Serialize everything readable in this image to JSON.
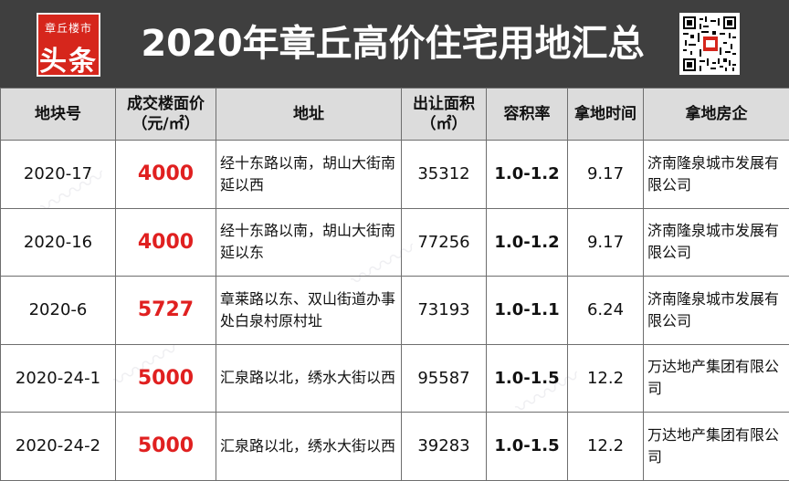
{
  "header": {
    "logo_top": "章丘楼市",
    "logo_main": "头条",
    "title": "2020年章丘高价住宅用地汇总"
  },
  "table": {
    "columns": {
      "plot": "地块号",
      "price_line1": "成交楼面价",
      "price_line2": "（元/㎡）",
      "address": "地址",
      "area_line1": "出让面积",
      "area_line2": "（㎡）",
      "far": "容积率",
      "date": "拿地时间",
      "developer": "拿地房企"
    },
    "rows": [
      {
        "plot": "2020-17",
        "price": "4000",
        "address": "经十东路以南，胡山大街南延以西",
        "area": "35312",
        "far": "1.0-1.2",
        "date": "9.17",
        "developer": "济南隆泉城市发展有限公司"
      },
      {
        "plot": "2020-16",
        "price": "4000",
        "address": "经十东路以南，胡山大街南延以东",
        "area": "77256",
        "far": "1.0-1.2",
        "date": "9.17",
        "developer": "济南隆泉城市发展有限公司"
      },
      {
        "plot": "2020-6",
        "price": "5727",
        "address": "章莱路以东、双山街道办事处白泉村原村址",
        "area": "73193",
        "far": "1.0-1.1",
        "date": "6.24",
        "developer": "济南隆泉城市发展有限公司"
      },
      {
        "plot": "2020-24-1",
        "price": "5000",
        "address": "汇泉路以北，绣水大街以西",
        "area": "95587",
        "far": "1.0-1.5",
        "date": "12.2",
        "developer": "万达地产集团有限公司"
      },
      {
        "plot": "2020-24-2",
        "price": "5000",
        "address": "汇泉路以北，绣水大街以西",
        "area": "39283",
        "far": "1.0-1.5",
        "date": "12.2",
        "developer": "万达地产集团有限公司"
      }
    ]
  },
  "colors": {
    "banner": "#3f3f3f",
    "logo": "#d6261c",
    "price": "#e02020",
    "header_bg": "#dcdcdc"
  }
}
